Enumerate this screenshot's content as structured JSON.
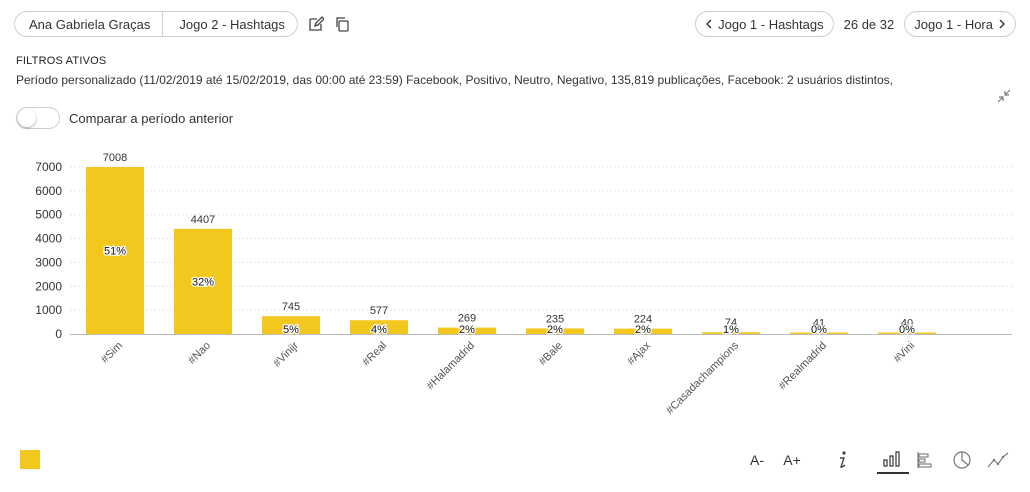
{
  "header": {
    "breadcrumb": [
      "Ana Gabriela Graças",
      "Jogo 2 - Hashtags"
    ],
    "prev_label": "Jogo 1 - Hashtags",
    "page_counter": "26 de 32",
    "next_label": "Jogo 1 - Hora"
  },
  "filters": {
    "title": "FILTROS ATIVOS",
    "text": "Período personalizado (11/02/2019 até 15/02/2019, das 00:00 até 23:59) Facebook, Positivo, Neutro, Negativo, 135,819 publicações, Facebook: 2 usuários distintos,"
  },
  "compare": {
    "label": "Comparar a período anterior",
    "enabled": false
  },
  "footer": {
    "font_decrease": "A-",
    "font_increase": "A+"
  },
  "colors": {
    "bar": "#f2c71e",
    "axis_text": "#333333",
    "grid": "#e4e4e4"
  },
  "chart_data": {
    "type": "bar",
    "categories": [
      "#Sim",
      "#Nao",
      "#Vinijr",
      "#Real",
      "#Halamadrid",
      "#Bale",
      "#Ajax",
      "#Casadachampions",
      "#Realmadrid",
      "#Vini"
    ],
    "values": [
      7008,
      4407,
      745,
      577,
      269,
      235,
      224,
      74,
      41,
      40
    ],
    "percent_labels": [
      "51%",
      "32%",
      "5%",
      "4%",
      "2%",
      "2%",
      "2%",
      "1%",
      "0%",
      "0%"
    ],
    "ylim": [
      0,
      7000
    ],
    "yticks": [
      0,
      1000,
      2000,
      3000,
      4000,
      5000,
      6000,
      7000
    ],
    "grid": true
  }
}
